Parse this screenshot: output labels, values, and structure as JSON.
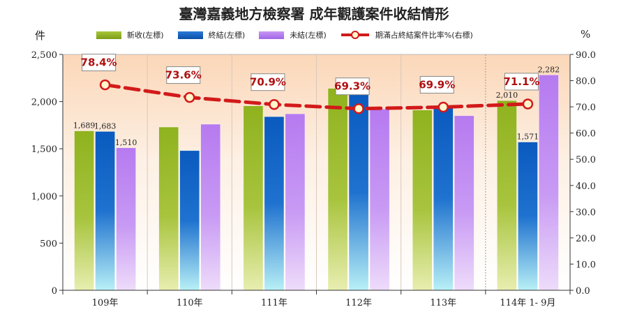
{
  "title": "臺灣嘉義地方檢察署  成年觀護案件收結情形",
  "left_unit": "件",
  "right_unit": "%",
  "legend": [
    {
      "key": "new",
      "label": "新收(左標)",
      "kind": "bar",
      "color": "#8fb21e"
    },
    {
      "key": "closed",
      "label": "終結(左標)",
      "kind": "bar",
      "color": "#0a5fbf"
    },
    {
      "key": "open",
      "label": "未結(左標)",
      "kind": "bar",
      "color": "#b87cf0"
    },
    {
      "key": "ratio",
      "label": "期滿占終結案件比率%(右標)",
      "kind": "line",
      "color": "#d21a1a"
    }
  ],
  "chart_data": {
    "type": "bar",
    "categories": [
      "109年",
      "110年",
      "111年",
      "112年",
      "113年",
      "114年 1- 9月"
    ],
    "series": [
      {
        "name": "新收(左標)",
        "axis": "left",
        "values": [
          1689,
          1730,
          1955,
          2140,
          1910,
          2010
        ],
        "labels": [
          "1,689",
          "",
          "",
          "",
          "",
          "2,010"
        ]
      },
      {
        "name": "終結(左標)",
        "axis": "left",
        "values": [
          1683,
          1480,
          1840,
          2080,
          1955,
          1571
        ],
        "labels": [
          "1,683",
          "",
          "",
          "",
          "",
          "1,571"
        ]
      },
      {
        "name": "未結(左標)",
        "axis": "left",
        "values": [
          1510,
          1760,
          1870,
          1920,
          1850,
          2282
        ],
        "labels": [
          "1,510",
          "",
          "",
          "",
          "",
          "2,282"
        ]
      },
      {
        "name": "期滿占終結案件比率%(右標)",
        "axis": "right",
        "type": "line",
        "values": [
          78.4,
          73.6,
          70.9,
          69.3,
          69.9,
          71.1
        ],
        "labels": [
          "78.4%",
          "73.6%",
          "70.9%",
          "69.3%",
          "69.9%",
          "71.1%"
        ]
      }
    ],
    "y_left": {
      "min": 0,
      "max": 2500,
      "ticks": [
        "0",
        "500",
        "1,000",
        "1,500",
        "2,000",
        "2,500"
      ]
    },
    "y_right": {
      "min": 0,
      "max": 90,
      "ticks": [
        "0.0",
        "10.0",
        "20.0",
        "30.0",
        "40.0",
        "50.0",
        "60.0",
        "70.0",
        "80.0",
        "90.0"
      ]
    },
    "grid": "vertical category separators",
    "background": "gradient peach to white",
    "legend_position": "top"
  }
}
